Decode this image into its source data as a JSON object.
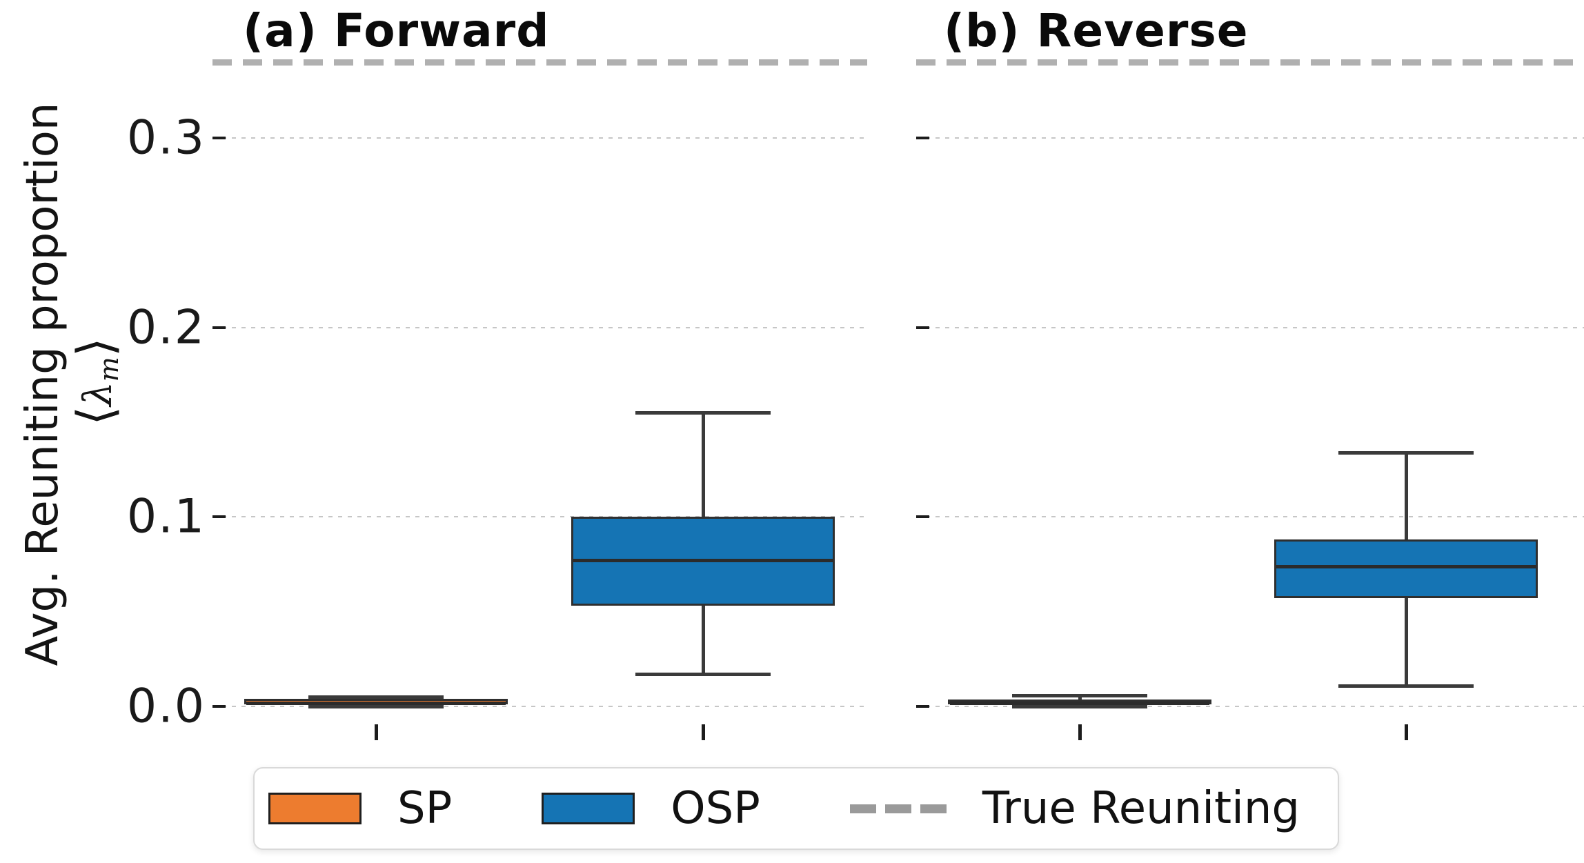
{
  "chart_data": {
    "type": "box",
    "ylabel": "Avg. Reuniting proportion",
    "ylabel_math": {
      "open": "⟨",
      "symbol": "λ",
      "subscript": "m",
      "close": "⟩"
    },
    "yticks": [
      "0.0",
      "0.1",
      "0.2",
      "0.3"
    ],
    "ytick_values": [
      0.0,
      0.1,
      0.2,
      0.3
    ],
    "ylim": [
      -0.008,
      0.347
    ],
    "grid": true,
    "legend_position": "bottom",
    "reference_line": {
      "label": "True Reuniting",
      "value": 0.34,
      "style": "dashed",
      "color": "#b0b0b0"
    },
    "panels": [
      {
        "title": "(a) Forward",
        "boxes": [
          {
            "series": "SP",
            "color": "#ed7c2f",
            "whislo": 0.0,
            "q1": 0.001,
            "med": 0.002,
            "q3": 0.004,
            "whishi": 0.005
          },
          {
            "series": "OSP",
            "color": "#1574b4",
            "whislo": 0.017,
            "q1": 0.053,
            "med": 0.077,
            "q3": 0.1,
            "whishi": 0.155
          }
        ]
      },
      {
        "title": "(b) Reverse",
        "boxes": [
          {
            "series": "SP",
            "color": "#ed7c2f",
            "whislo": 0.0,
            "q1": 0.001,
            "med": 0.002,
            "q3": 0.0035,
            "whishi": 0.006
          },
          {
            "series": "OSP",
            "color": "#1574b4",
            "whislo": 0.011,
            "q1": 0.057,
            "med": 0.074,
            "q3": 0.088,
            "whishi": 0.134
          }
        ]
      }
    ],
    "legend": {
      "items": [
        {
          "label": "SP",
          "type": "patch",
          "color": "#ed7c2f"
        },
        {
          "label": "OSP",
          "type": "patch",
          "color": "#1574b4"
        },
        {
          "label": "True Reuniting",
          "type": "dashed-line",
          "color": "#9a9a9a"
        }
      ]
    }
  }
}
